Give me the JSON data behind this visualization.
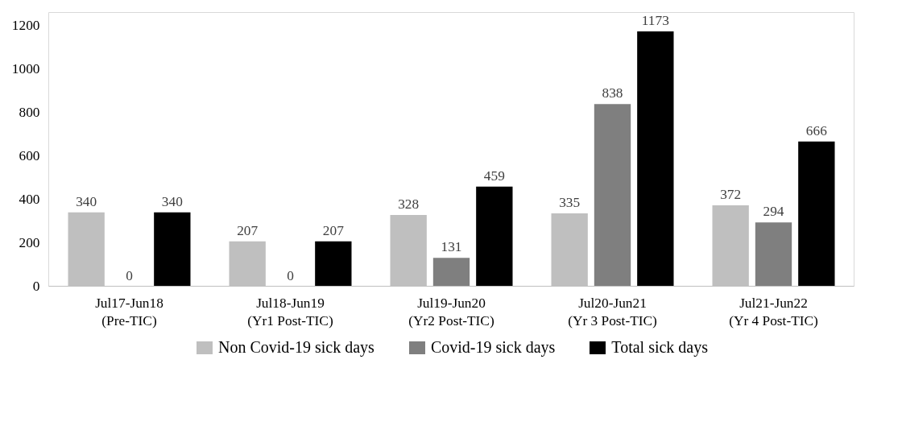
{
  "chart_data": {
    "type": "bar",
    "categories": [
      "Jul17-Jun18\n(Pre-TIC)",
      "Jul18-Jun19\n(Yr1 Post-TIC)",
      "Jul19-Jun20\n(Yr2 Post-TIC)",
      "Jul20-Jun21\n(Yr 3 Post-TIC)",
      "Jul21-Jun22\n(Yr 4 Post-TIC)"
    ],
    "series": [
      {
        "name": "Non Covid-19 sick days",
        "color": "#bfbfbf",
        "values": [
          340,
          207,
          328,
          335,
          372
        ]
      },
      {
        "name": "Covid-19 sick days",
        "color": "#7f7f7f",
        "values": [
          0,
          0,
          131,
          838,
          294
        ]
      },
      {
        "name": "Total sick days",
        "color": "#000000",
        "values": [
          340,
          207,
          459,
          1173,
          666
        ]
      }
    ],
    "ylim": [
      0,
      1260
    ],
    "yticks": [
      0,
      200,
      400,
      600,
      800,
      1000,
      1200
    ],
    "data_labels": true,
    "grid": false,
    "legend": "bottom"
  }
}
